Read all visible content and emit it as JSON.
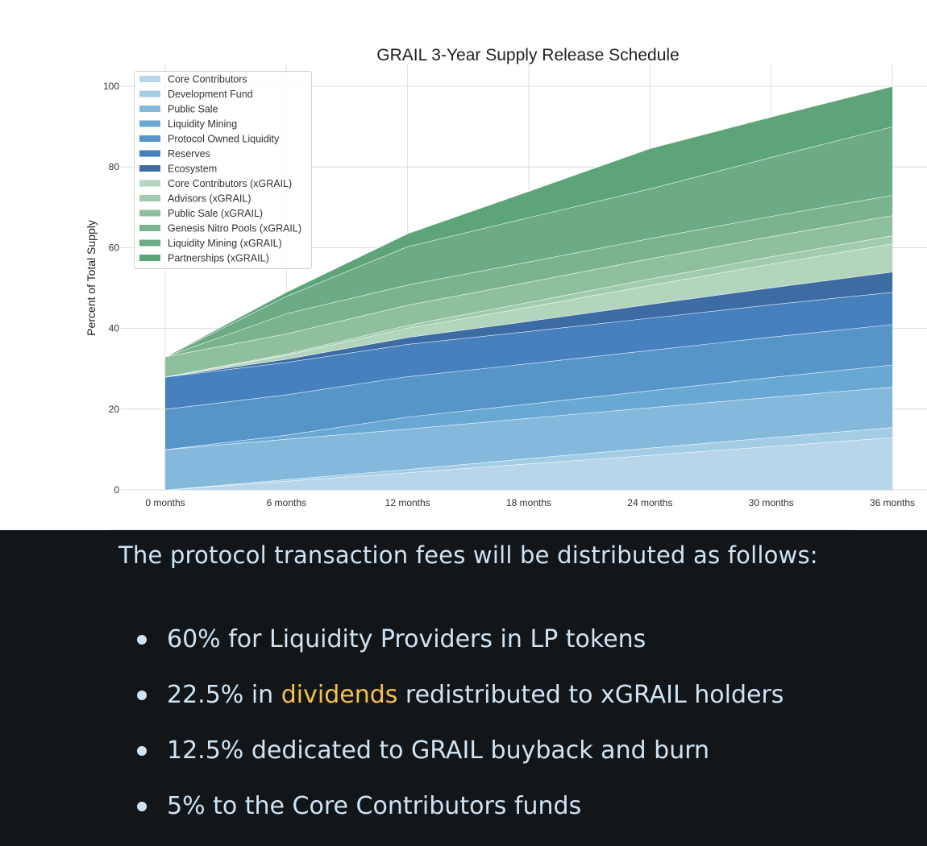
{
  "chart_data": {
    "type": "area",
    "stacked": true,
    "title": "GRAIL 3-Year Supply Release Schedule",
    "xlabel": "",
    "ylabel": "Percent of Total Supply",
    "x": [
      "0 months",
      "6 months",
      "12 months",
      "18 months",
      "24 months",
      "30 months",
      "36 months"
    ],
    "ylim": [
      0,
      100
    ],
    "yticks": [
      0,
      20,
      40,
      60,
      80,
      100
    ],
    "grid": true,
    "legend_position": "top-left",
    "series": [
      {
        "name": "Core Contributors",
        "color": "#b8d6e9",
        "values": [
          0,
          2.2,
          4.3,
          6.5,
          8.6,
          10.8,
          13
        ]
      },
      {
        "name": "Development Fund",
        "color": "#a3cde5",
        "values": [
          0,
          0.4,
          0.8,
          1.3,
          1.8,
          2.2,
          2.5
        ]
      },
      {
        "name": "Public Sale",
        "color": "#84b9dc",
        "values": [
          10,
          10,
          10,
          10,
          10,
          10,
          10
        ]
      },
      {
        "name": "Liquidity Mining",
        "color": "#6aa8d4",
        "values": [
          0,
          1,
          3,
          3.5,
          4.2,
          4.9,
          5.5
        ]
      },
      {
        "name": "Protocol Owned Liquidity",
        "color": "#5795c9",
        "values": [
          10,
          10,
          10,
          10,
          10,
          10,
          10
        ]
      },
      {
        "name": "Reserves",
        "color": "#4681be",
        "values": [
          8,
          8,
          8,
          8,
          8,
          8,
          8
        ]
      },
      {
        "name": "Ecosystem",
        "color": "#3d6ba3",
        "values": [
          0,
          0.8,
          1.7,
          2.5,
          3.4,
          4.2,
          5
        ]
      },
      {
        "name": "Core Contributors (xGRAIL)",
        "color": "#b3d5bd",
        "values": [
          0,
          1,
          2.3,
          3.5,
          4.7,
          5.9,
          7
        ]
      },
      {
        "name": "Advisors (xGRAIL)",
        "color": "#a1cbae",
        "values": [
          0,
          0.3,
          0.7,
          1.2,
          1.6,
          1.8,
          2
        ]
      },
      {
        "name": "Public Sale (xGRAIL)",
        "color": "#8fc09d",
        "values": [
          5,
          5,
          5,
          5,
          5,
          5,
          5
        ]
      },
      {
        "name": "Genesis Nitro Pools (xGRAIL)",
        "color": "#7bb38f",
        "values": [
          0,
          5,
          5,
          5,
          5,
          5,
          5
        ]
      },
      {
        "name": "Liquidity Mining (xGRAIL)",
        "color": "#6dab86",
        "values": [
          0,
          4.3,
          9.5,
          11,
          12.3,
          14.6,
          17
        ]
      },
      {
        "name": "Partnerships (xGRAIL)",
        "color": "#5ea479",
        "values": [
          0,
          1,
          3.2,
          6.5,
          10,
          10,
          10
        ]
      }
    ]
  },
  "fees": {
    "heading": "The protocol transaction fees will be distributed as follows:",
    "items": [
      [
        {
          "text": "60% for Liquidity Providers in LP tokens",
          "highlight": false
        }
      ],
      [
        {
          "text": "22.5% in ",
          "highlight": false
        },
        {
          "text": "dividends",
          "highlight": true
        },
        {
          "text": " redistributed to xGRAIL holders",
          "highlight": false
        }
      ],
      [
        {
          "text": "12.5% dedicated to GRAIL buyback and burn",
          "highlight": false
        }
      ],
      [
        {
          "text": "5% to the Core Contributors funds",
          "highlight": false
        }
      ]
    ],
    "highlight_color": "#f5c04a"
  }
}
